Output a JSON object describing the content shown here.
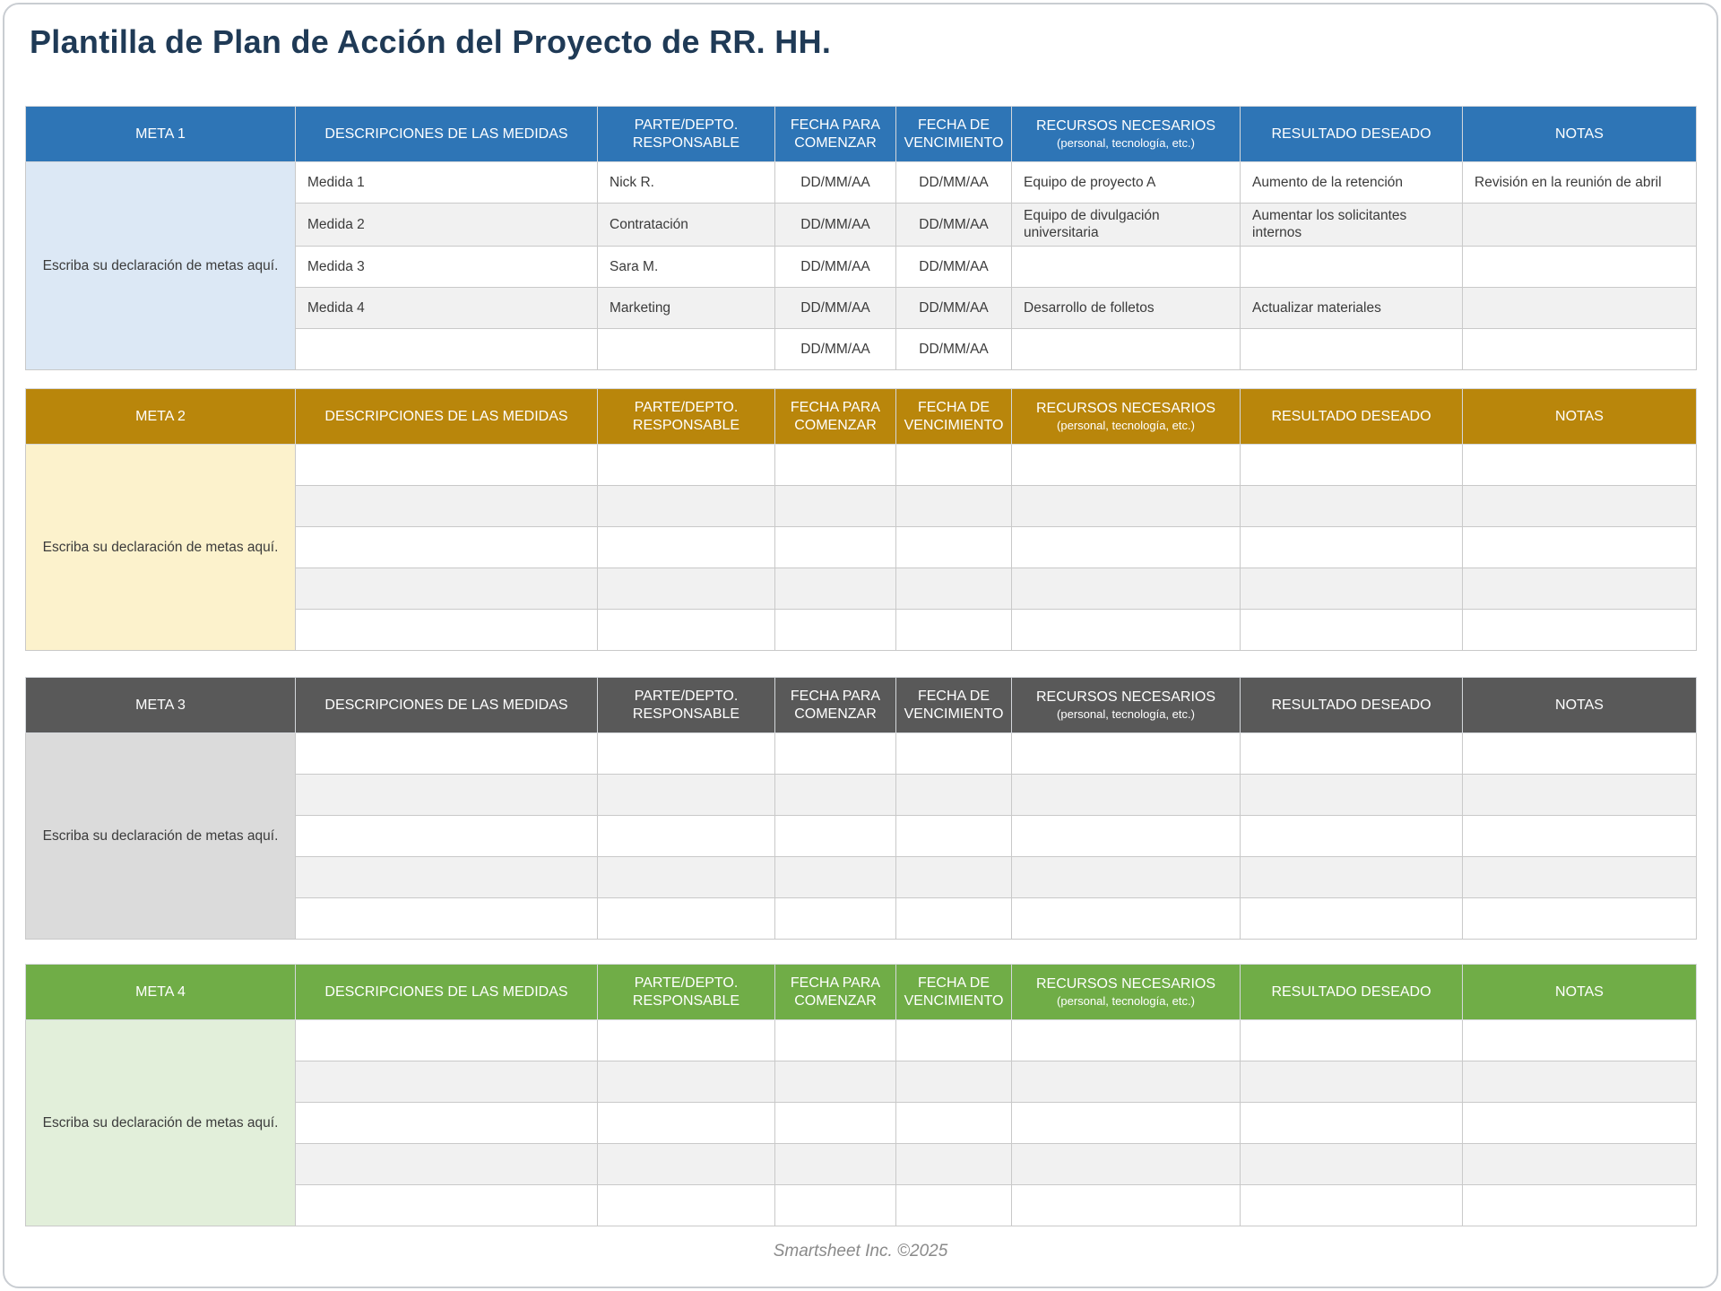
{
  "header": {
    "title": "Plantilla de Plan de Acción del Proyecto de RR. HH."
  },
  "footer": {
    "text": "Smartsheet Inc. ©2025"
  },
  "columns": [
    {
      "label": "DESCRIPCIONES DE LAS MEDIDAS"
    },
    {
      "label": "PARTE/DEPTO. RESPONSABLE"
    },
    {
      "label": "FECHA PARA COMENZAR"
    },
    {
      "label": "FECHA DE VENCIMIENTO"
    },
    {
      "label": "RECURSOS NECESARIOS",
      "sublabel": "(personal, tecnología, etc.)"
    },
    {
      "label": "RESULTADO DESEADO"
    },
    {
      "label": "NOTAS"
    }
  ],
  "tables": [
    {
      "meta_label": "META 1",
      "goal_text": "Escriba su declaración de metas aquí.",
      "colors": {
        "header_bg": "#2E75B6",
        "header_text": "#FFFFFF",
        "goal_bg": "#DCE8F5"
      },
      "rows": [
        [
          "Medida 1",
          "Nick R.",
          "DD/MM/AA",
          "DD/MM/AA",
          "Equipo de proyecto A",
          "Aumento de la retención",
          "Revisión en la reunión de abril"
        ],
        [
          "Medida 2",
          "Contratación",
          "DD/MM/AA",
          "DD/MM/AA",
          "Equipo de divulgación universitaria",
          "Aumentar los solicitantes internos",
          ""
        ],
        [
          "Medida 3",
          "Sara M.",
          "DD/MM/AA",
          "DD/MM/AA",
          "",
          "",
          ""
        ],
        [
          "Medida 4",
          "Marketing",
          "DD/MM/AA",
          "DD/MM/AA",
          "Desarrollo de folletos",
          "Actualizar materiales",
          ""
        ],
        [
          "",
          "",
          "DD/MM/AA",
          "DD/MM/AA",
          "",
          "",
          ""
        ]
      ]
    },
    {
      "meta_label": "META 2",
      "goal_text": "Escriba su declaración de metas aquí.",
      "colors": {
        "header_bg": "#B9860B",
        "header_text": "#FFFFFF",
        "goal_bg": "#FCF2CC"
      },
      "rows": [
        [
          "",
          "",
          "",
          "",
          "",
          "",
          ""
        ],
        [
          "",
          "",
          "",
          "",
          "",
          "",
          ""
        ],
        [
          "",
          "",
          "",
          "",
          "",
          "",
          ""
        ],
        [
          "",
          "",
          "",
          "",
          "",
          "",
          ""
        ],
        [
          "",
          "",
          "",
          "",
          "",
          "",
          ""
        ]
      ]
    },
    {
      "meta_label": "META 3",
      "goal_text": "Escriba su declaración de metas aquí.",
      "colors": {
        "header_bg": "#595959",
        "header_text": "#FFFFFF",
        "goal_bg": "#DBDBDB"
      },
      "rows": [
        [
          "",
          "",
          "",
          "",
          "",
          "",
          ""
        ],
        [
          "",
          "",
          "",
          "",
          "",
          "",
          ""
        ],
        [
          "",
          "",
          "",
          "",
          "",
          "",
          ""
        ],
        [
          "",
          "",
          "",
          "",
          "",
          "",
          ""
        ],
        [
          "",
          "",
          "",
          "",
          "",
          "",
          ""
        ]
      ]
    },
    {
      "meta_label": "META 4",
      "goal_text": "Escriba su declaración de metas aquí.",
      "colors": {
        "header_bg": "#70AD47",
        "header_text": "#FFFFFF",
        "goal_bg": "#E2EFDA"
      },
      "rows": [
        [
          "",
          "",
          "",
          "",
          "",
          "",
          ""
        ],
        [
          "",
          "",
          "",
          "",
          "",
          "",
          ""
        ],
        [
          "",
          "",
          "",
          "",
          "",
          "",
          ""
        ],
        [
          "",
          "",
          "",
          "",
          "",
          "",
          ""
        ],
        [
          "",
          "",
          "",
          "",
          "",
          "",
          ""
        ]
      ]
    }
  ],
  "colors": {
    "title_text": "#1F3A56",
    "footer_text": "#8A8A8A",
    "row_alt": "#F1F1F1",
    "grid": "#C9C9C9"
  }
}
